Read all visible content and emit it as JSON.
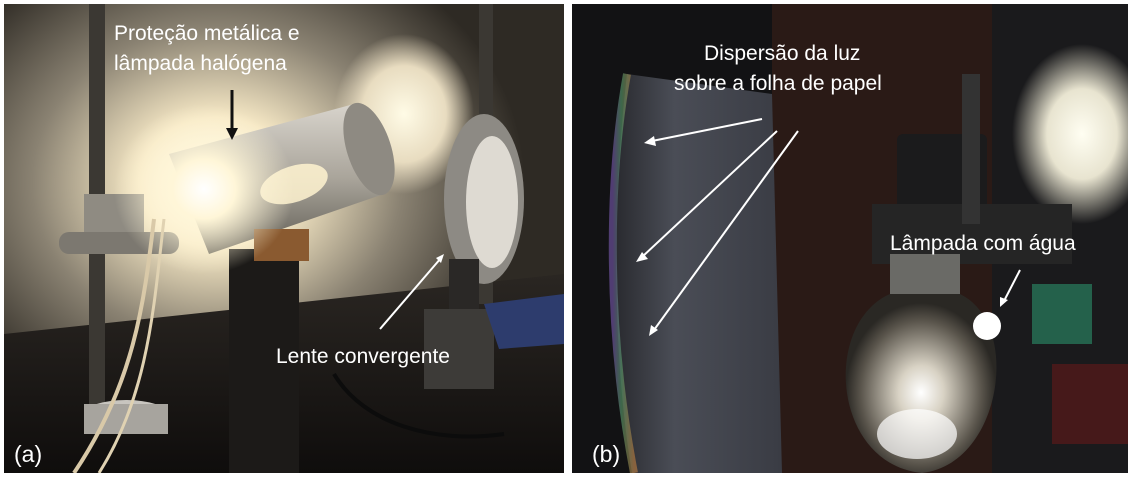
{
  "panel_a": {
    "letter": "(a)",
    "annotation_lamp_line1": "Proteção metálica e",
    "annotation_lamp_line2": "lâmpada halógena",
    "annotation_lens": "Lente convergente"
  },
  "panel_b": {
    "letter": "(b)",
    "annotation_dispersion_line1": "Dispersão da luz",
    "annotation_dispersion_line2": "sobre a folha  de papel",
    "annotation_bulb": "Lâmpada com água"
  }
}
